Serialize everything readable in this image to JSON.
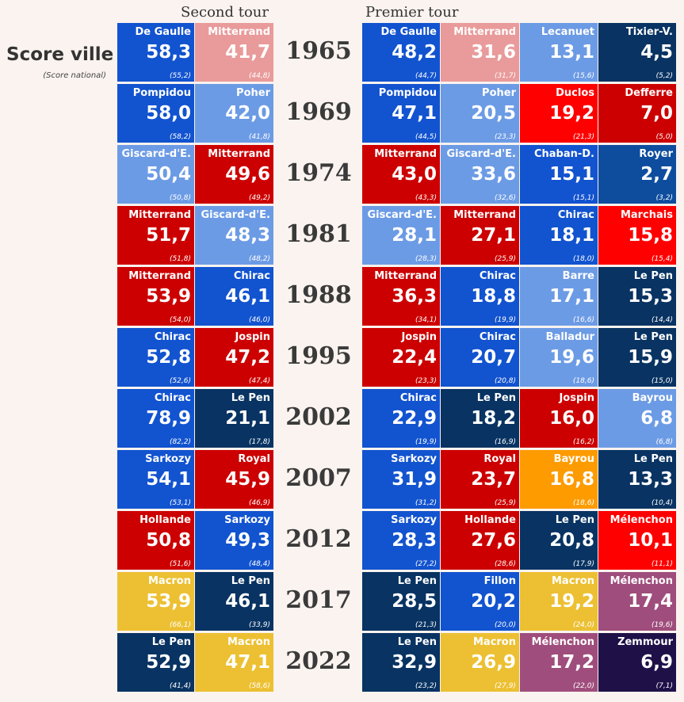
{
  "headers": {
    "second": "Second tour",
    "first": "Premier tour"
  },
  "legend": {
    "title": "Score ville",
    "subtitle": "(Score national)"
  },
  "colors": {
    "lightblue": "#6c9be5",
    "blue": "#1253cf",
    "navy": "#083362",
    "darkblue": "#0e4d9e",
    "red": "#cc0000",
    "brightred": "#fe0000",
    "pink": "#e99a9a",
    "orange": "#fd9b00",
    "yellow": "#ecc032",
    "purple": "#9f4d7c",
    "darkpurple": "#1f1148"
  },
  "chart_data": {
    "type": "table",
    "title": "Score ville (Score national)",
    "rounds": [
      "Second tour",
      "Premier tour"
    ],
    "years": [
      {
        "year": "1965",
        "second": [
          {
            "name": "De Gaulle",
            "value": "58,3",
            "national": "(55,2)",
            "color": "blue"
          },
          {
            "name": "Mitterrand",
            "value": "41,7",
            "national": "(44,8)",
            "color": "pink"
          }
        ],
        "first": [
          {
            "name": "De Gaulle",
            "value": "48,2",
            "national": "(44,7)",
            "color": "blue"
          },
          {
            "name": "Mitterrand",
            "value": "31,6",
            "national": "(31,7)",
            "color": "pink"
          },
          {
            "name": "Lecanuet",
            "value": "13,1",
            "national": "(15,6)",
            "color": "lightblue"
          },
          {
            "name": "Tixier-V.",
            "value": "4,5",
            "national": "(5,2)",
            "color": "navy"
          }
        ]
      },
      {
        "year": "1969",
        "second": [
          {
            "name": "Pompidou",
            "value": "58,0",
            "national": "(58,2)",
            "color": "blue"
          },
          {
            "name": "Poher",
            "value": "42,0",
            "national": "(41,8)",
            "color": "lightblue"
          }
        ],
        "first": [
          {
            "name": "Pompidou",
            "value": "47,1",
            "national": "(44,5)",
            "color": "blue"
          },
          {
            "name": "Poher",
            "value": "20,5",
            "national": "(23,3)",
            "color": "lightblue"
          },
          {
            "name": "Duclos",
            "value": "19,2",
            "national": "(21,3)",
            "color": "brightred"
          },
          {
            "name": "Defferre",
            "value": "7,0",
            "national": "(5,0)",
            "color": "red"
          }
        ]
      },
      {
        "year": "1974",
        "second": [
          {
            "name": "Giscard-d'E.",
            "value": "50,4",
            "national": "(50,8)",
            "color": "lightblue"
          },
          {
            "name": "Mitterrand",
            "value": "49,6",
            "national": "(49,2)",
            "color": "red"
          }
        ],
        "first": [
          {
            "name": "Mitterrand",
            "value": "43,0",
            "national": "(43,3)",
            "color": "red"
          },
          {
            "name": "Giscard-d'E.",
            "value": "33,6",
            "national": "(32,6)",
            "color": "lightblue"
          },
          {
            "name": "Chaban-D.",
            "value": "15,1",
            "national": "(15,1)",
            "color": "blue"
          },
          {
            "name": "Royer",
            "value": "2,7",
            "national": "(3,2)",
            "color": "darkblue"
          }
        ]
      },
      {
        "year": "1981",
        "second": [
          {
            "name": "Mitterrand",
            "value": "51,7",
            "national": "(51,8)",
            "color": "red"
          },
          {
            "name": "Giscard-d'E.",
            "value": "48,3",
            "national": "(48,2)",
            "color": "lightblue"
          }
        ],
        "first": [
          {
            "name": "Giscard-d'E.",
            "value": "28,1",
            "national": "(28,3)",
            "color": "lightblue"
          },
          {
            "name": "Mitterrand",
            "value": "27,1",
            "national": "(25,9)",
            "color": "red"
          },
          {
            "name": "Chirac",
            "value": "18,1",
            "national": "(18,0)",
            "color": "blue"
          },
          {
            "name": "Marchais",
            "value": "15,8",
            "national": "(15,4)",
            "color": "brightred"
          }
        ]
      },
      {
        "year": "1988",
        "second": [
          {
            "name": "Mitterrand",
            "value": "53,9",
            "national": "(54,0)",
            "color": "red"
          },
          {
            "name": "Chirac",
            "value": "46,1",
            "national": "(46,0)",
            "color": "blue"
          }
        ],
        "first": [
          {
            "name": "Mitterrand",
            "value": "36,3",
            "national": "(34,1)",
            "color": "red"
          },
          {
            "name": "Chirac",
            "value": "18,8",
            "national": "(19,9)",
            "color": "blue"
          },
          {
            "name": "Barre",
            "value": "17,1",
            "national": "(16,6)",
            "color": "lightblue"
          },
          {
            "name": "Le Pen",
            "value": "15,3",
            "national": "(14,4)",
            "color": "navy"
          }
        ]
      },
      {
        "year": "1995",
        "second": [
          {
            "name": "Chirac",
            "value": "52,8",
            "national": "(52,6)",
            "color": "blue"
          },
          {
            "name": "Jospin",
            "value": "47,2",
            "national": "(47,4)",
            "color": "red"
          }
        ],
        "first": [
          {
            "name": "Jospin",
            "value": "22,4",
            "national": "(23,3)",
            "color": "red"
          },
          {
            "name": "Chirac",
            "value": "20,7",
            "national": "(20,8)",
            "color": "blue"
          },
          {
            "name": "Balladur",
            "value": "19,6",
            "national": "(18,6)",
            "color": "lightblue"
          },
          {
            "name": "Le Pen",
            "value": "15,9",
            "national": "(15,0)",
            "color": "navy"
          }
        ]
      },
      {
        "year": "2002",
        "second": [
          {
            "name": "Chirac",
            "value": "78,9",
            "national": "(82,2)",
            "color": "blue"
          },
          {
            "name": "Le Pen",
            "value": "21,1",
            "national": "(17,8)",
            "color": "navy"
          }
        ],
        "first": [
          {
            "name": "Chirac",
            "value": "22,9",
            "national": "(19,9)",
            "color": "blue"
          },
          {
            "name": "Le Pen",
            "value": "18,2",
            "national": "(16,9)",
            "color": "navy"
          },
          {
            "name": "Jospin",
            "value": "16,0",
            "national": "(16,2)",
            "color": "red"
          },
          {
            "name": "Bayrou",
            "value": "6,8",
            "national": "(6,8)",
            "color": "lightblue"
          }
        ]
      },
      {
        "year": "2007",
        "second": [
          {
            "name": "Sarkozy",
            "value": "54,1",
            "national": "(53,1)",
            "color": "blue"
          },
          {
            "name": "Royal",
            "value": "45,9",
            "national": "(46,9)",
            "color": "red"
          }
        ],
        "first": [
          {
            "name": "Sarkozy",
            "value": "31,9",
            "national": "(31,2)",
            "color": "blue"
          },
          {
            "name": "Royal",
            "value": "23,7",
            "national": "(25,9)",
            "color": "red"
          },
          {
            "name": "Bayrou",
            "value": "16,8",
            "national": "(18,6)",
            "color": "orange"
          },
          {
            "name": "Le Pen",
            "value": "13,3",
            "national": "(10,4)",
            "color": "navy"
          }
        ]
      },
      {
        "year": "2012",
        "second": [
          {
            "name": "Hollande",
            "value": "50,8",
            "national": "(51,6)",
            "color": "red"
          },
          {
            "name": "Sarkozy",
            "value": "49,3",
            "national": "(48,4)",
            "color": "blue"
          }
        ],
        "first": [
          {
            "name": "Sarkozy",
            "value": "28,3",
            "national": "(27,2)",
            "color": "blue"
          },
          {
            "name": "Hollande",
            "value": "27,6",
            "national": "(28,6)",
            "color": "red"
          },
          {
            "name": "Le Pen",
            "value": "20,8",
            "national": "(17,9)",
            "color": "navy"
          },
          {
            "name": "Mélenchon",
            "value": "10,1",
            "national": "(11,1)",
            "color": "brightred"
          }
        ]
      },
      {
        "year": "2017",
        "second": [
          {
            "name": "Macron",
            "value": "53,9",
            "national": "(66,1)",
            "color": "yellow"
          },
          {
            "name": "Le Pen",
            "value": "46,1",
            "national": "(33,9)",
            "color": "navy"
          }
        ],
        "first": [
          {
            "name": "Le Pen",
            "value": "28,5",
            "national": "(21,3)",
            "color": "navy"
          },
          {
            "name": "Fillon",
            "value": "20,2",
            "national": "(20,0)",
            "color": "blue"
          },
          {
            "name": "Macron",
            "value": "19,2",
            "national": "(24,0)",
            "color": "yellow"
          },
          {
            "name": "Mélenchon",
            "value": "17,4",
            "national": "(19,6)",
            "color": "purple"
          }
        ]
      },
      {
        "year": "2022",
        "second": [
          {
            "name": "Le Pen",
            "value": "52,9",
            "national": "(41,4)",
            "color": "navy"
          },
          {
            "name": "Macron",
            "value": "47,1",
            "national": "(58,6)",
            "color": "yellow"
          }
        ],
        "first": [
          {
            "name": "Le Pen",
            "value": "32,9",
            "national": "(23,2)",
            "color": "navy"
          },
          {
            "name": "Macron",
            "value": "26,9",
            "national": "(27,9)",
            "color": "yellow"
          },
          {
            "name": "Mélenchon",
            "value": "17,2",
            "national": "(22,0)",
            "color": "purple"
          },
          {
            "name": "Zemmour",
            "value": "6,9",
            "national": "(7,1)",
            "color": "darkpurple"
          }
        ]
      }
    ]
  }
}
